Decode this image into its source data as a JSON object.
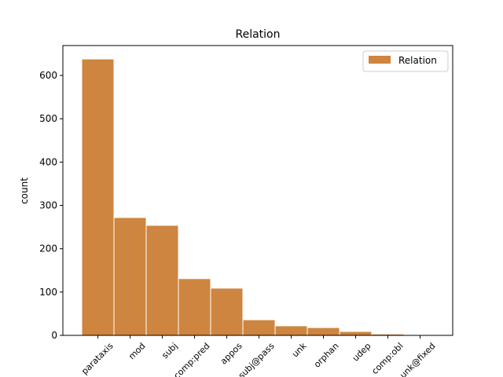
{
  "chart_data": {
    "type": "bar",
    "title": "Relation",
    "y_label": "count",
    "categories": [
      "parataxis",
      "mod",
      "subj",
      "comp:pred",
      "appos",
      "subj@pass",
      "unk",
      "orphan",
      "udep",
      "comp:obl",
      "unk@fixed"
    ],
    "series": [
      {
        "name": "Relation",
        "color": "#cd853f",
        "values": [
          638,
          272,
          254,
          131,
          109,
          36,
          22,
          18,
          9,
          3,
          1
        ]
      }
    ],
    "ylim": [
      0,
      669
    ],
    "yticks": [
      0,
      100,
      200,
      300,
      400,
      500,
      600
    ],
    "legend": "upper right"
  }
}
